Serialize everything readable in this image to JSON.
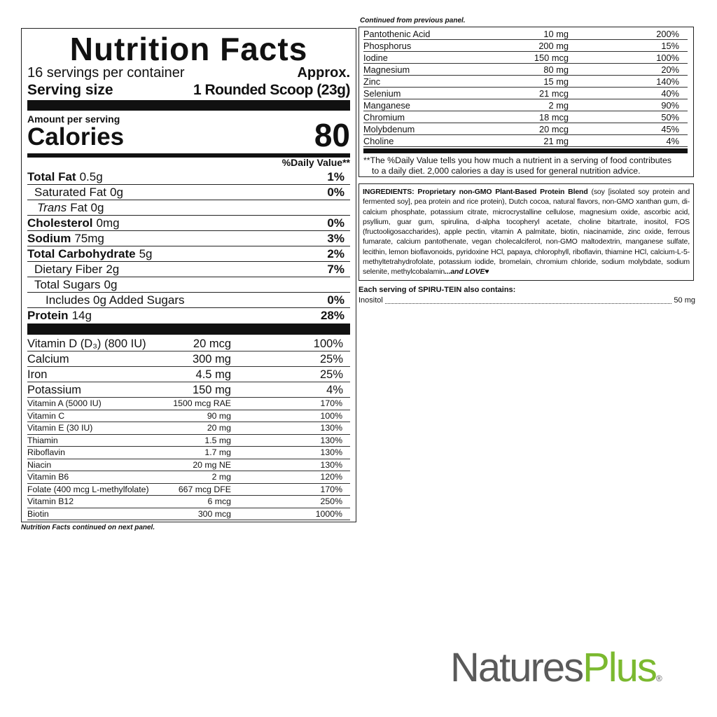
{
  "left": {
    "title": "Nutrition Facts",
    "servings": "16 servings per container",
    "approx": "Approx.",
    "serving_size_label": "Serving size",
    "serving_size_value": "1 Rounded Scoop (23g)",
    "amount_per_serving": "Amount per serving",
    "calories_label": "Calories",
    "calories_value": "80",
    "dv_header": "%Daily Value**",
    "nutrients": [
      {
        "name": "Total Fat",
        "amount": "0.5g",
        "dv": "1%"
      },
      {
        "name": "Saturated Fat",
        "amount": "0g",
        "dv": "0%"
      },
      {
        "name": "Trans",
        "amount": "Fat 0g"
      },
      {
        "name": "Cholesterol",
        "amount": "0mg",
        "dv": "0%"
      },
      {
        "name": "Sodium",
        "amount": "75mg",
        "dv": "3%"
      },
      {
        "name": "Total Carbohydrate",
        "amount": "5g",
        "dv": "2%"
      },
      {
        "name": "Dietary Fiber",
        "amount": "2g",
        "dv": "7%"
      },
      {
        "name": "Total Sugars",
        "amount": "0g"
      },
      {
        "name": "Includes 0g Added Sugars",
        "dv": "0%"
      },
      {
        "name": "Protein",
        "amount": "14g",
        "dv": "28%"
      }
    ],
    "vitamins_large": [
      [
        "Vitamin D (D₃) (800 IU)",
        "20 mcg",
        "100%"
      ],
      [
        "Calcium",
        "300 mg",
        "25%"
      ],
      [
        "Iron",
        "4.5 mg",
        "25%"
      ],
      [
        "Potassium",
        "150 mg",
        "4%"
      ]
    ],
    "vitamins_small": [
      [
        "Vitamin A (5000 IU)",
        "1500 mcg RAE",
        "170%"
      ],
      [
        "Vitamin C",
        "90 mg",
        "100%"
      ],
      [
        "Vitamin E (30 IU)",
        "20 mg",
        "130%"
      ],
      [
        "Thiamin",
        "1.5 mg",
        "130%"
      ],
      [
        "Riboflavin",
        "1.7 mg",
        "130%"
      ],
      [
        "Niacin",
        "20 mg NE",
        "130%"
      ],
      [
        "Vitamin B6",
        "2 mg",
        "120%"
      ],
      [
        "Folate (400 mcg L-methylfolate)",
        "667 mcg DFE",
        "170%"
      ],
      [
        "Vitamin B12",
        "6 mcg",
        "250%"
      ],
      [
        "Biotin",
        "300 mcg",
        "1000%"
      ]
    ],
    "footer_note": "Nutrition Facts continued on next panel."
  },
  "right": {
    "continued_note": "Continued from previous panel.",
    "rows": [
      [
        "Pantothenic Acid",
        "10 mg",
        "200%"
      ],
      [
        "Phosphorus",
        "200 mg",
        "15%"
      ],
      [
        "Iodine",
        "150 mcg",
        "100%"
      ],
      [
        "Magnesium",
        "80 mg",
        "20%"
      ],
      [
        "Zinc",
        "15 mg",
        "140%"
      ],
      [
        "Selenium",
        "21 mcg",
        "40%"
      ],
      [
        "Manganese",
        "2 mg",
        "90%"
      ],
      [
        "Chromium",
        "18 mcg",
        "50%"
      ],
      [
        "Molybdenum",
        "20 mcg",
        "45%"
      ],
      [
        "Choline",
        "21 mg",
        "4%"
      ]
    ],
    "footnote": "**The %Daily Value tells you how much a nutrient in a serving of food contributes to a daily diet. 2,000 calories a day is used for general nutrition advice.",
    "ingredients": {
      "label": "INGREDIENTS:",
      "blend": "Proprietary non-GMO Plant-Based Protein Blend",
      "text": "(soy [isolated soy protein and fermented soy], pea protein and rice protein),  Dutch cocoa, natural flavors, non-GMO xanthan gum, di-calcium phosphate, potassium citrate, microcrystalline cellulose, magnesium oxide, ascorbic acid, psyllium, guar gum, spirulina, d-alpha tocopheryl acetate, choline bitartrate, inositol, FOS (fructooligosaccharides), apple pectin, vitamin A palmitate, biotin, niacinamide, zinc oxide, ferrous fumarate, calcium pantothenate, vegan cholecalciferol, non-GMO maltodextrin, manganese sulfate, lecithin, lemon bioflavonoids, pyridoxine HCl, papaya, chlorophyll, riboflavin, thiamine HCl, calcium-L-5-methyltetrahydrofolate, potassium iodide, bromelain, chromium chloride, sodium molybdate, sodium selenite, methylcobalamin",
      "ending": "...and LOVE♥"
    },
    "also_contains": "Each serving of SPIRU-TEIN also contains:",
    "extra": {
      "name": "Inositol",
      "amount": "50 mg"
    }
  },
  "logo": {
    "natures": "Natures",
    "plus": "Plus",
    "registered": "®"
  }
}
